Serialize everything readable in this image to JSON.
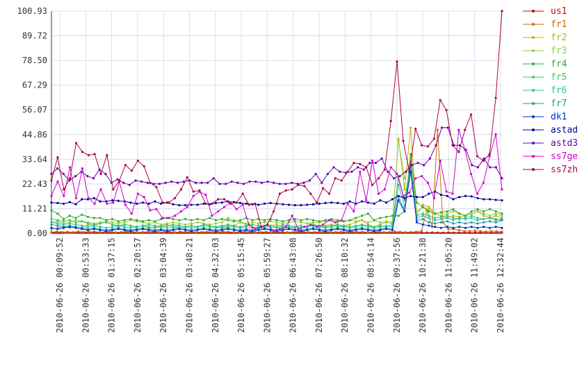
{
  "chart_data": {
    "type": "line",
    "title": "",
    "xlabel": "",
    "ylabel": "",
    "ylim": [
      0,
      100.93
    ],
    "yticks": [
      "0.00",
      "11.21",
      "22.43",
      "33.64",
      "44.86",
      "56.07",
      "67.29",
      "78.50",
      "89.72",
      "100.93"
    ],
    "xticks": [
      "2010-06-26 00:09:52",
      "2010-06-26 00:53:33",
      "2010-06-26 01:37:15",
      "2010-06-26 02:20:57",
      "2010-06-26 03:04:39",
      "2010-06-26 03:48:21",
      "2010-06-26 04:32:03",
      "2010-06-26 05:15:45",
      "2010-06-26 05:59:27",
      "2010-06-26 06:43:08",
      "2010-06-26 07:26:50",
      "2010-06-26 08:10:32",
      "2010-06-26 08:54:14",
      "2010-06-26 09:37:56",
      "2010-06-26 10:21:38",
      "2010-06-26 11:05:20",
      "2010-06-26 11:49:02",
      "2010-06-26 12:32:44"
    ],
    "grid": true,
    "legend": "right",
    "series": [
      {
        "name": "us1",
        "color": "#cc0000",
        "values": [
          0.3,
          0.4,
          0.3,
          0.5,
          0.3,
          0.4,
          0.3,
          0.3,
          0.4,
          0.3,
          0.3,
          0.4,
          0.3,
          0.3,
          0.4,
          0.3,
          0.3,
          0.4,
          0.3,
          0.3,
          0.4,
          0.3,
          0.3,
          0.4,
          0.3,
          0.3,
          0.4,
          0.3,
          0.3,
          0.4,
          0.3,
          0.3,
          0.4,
          0.3,
          0.3,
          0.4,
          0.3,
          0.3,
          0.4,
          0.3,
          0.3,
          0.4,
          0.3,
          0.3,
          0.4,
          0.3,
          0.3,
          0.4,
          0.3,
          0.3,
          0.4,
          0.3,
          0.3,
          0.4,
          0.3,
          0.3,
          0.4,
          0.3,
          0.3,
          0.4,
          0.3,
          0.3,
          0.4,
          0.3,
          0.3,
          0.4,
          0.3,
          0.3,
          0.4,
          0.3,
          0.3,
          0.4,
          0.3,
          0.3,
          0.4,
          0.3,
          0.3,
          0.4,
          0.3,
          0.3,
          0.4,
          0.3,
          0.3,
          0.4,
          0.3
        ]
      },
      {
        "name": "fr1",
        "color": "#cc6600",
        "values": [
          0.5,
          0.8,
          0.6,
          0.7,
          0.5,
          0.9,
          0.6,
          0.7,
          0.8,
          0.5,
          0.6,
          0.7,
          0.5,
          0.6,
          0.8,
          0.7,
          0.5,
          0.6,
          0.7,
          0.8,
          0.5,
          0.6,
          0.7,
          0.5,
          0.8,
          0.6,
          0.7,
          0.5,
          0.6,
          0.7,
          0.5,
          0.6,
          0.8,
          0.7,
          0.5,
          0.6,
          0.7,
          0.8,
          0.5,
          0.6,
          0.7,
          0.5,
          0.6,
          0.7,
          0.5,
          0.6,
          0.8,
          0.7,
          0.5,
          0.6,
          0.7,
          0.8,
          0.5,
          0.6,
          0.7,
          0.5,
          0.8,
          0.6,
          0.7,
          0.5,
          0.6,
          0.7,
          0.5,
          0.6,
          0.8,
          0.7,
          0.5,
          0.6,
          0.7,
          1.0,
          10.5,
          3.0,
          47.0,
          5.0,
          2.0,
          2.0,
          1.5,
          1.0,
          1.0,
          1.2,
          1.0,
          0.8,
          1.0,
          0.9,
          0.8
        ]
      },
      {
        "name": "fr2",
        "color": "#ccaa00",
        "values": [
          2.0,
          2.5,
          3.0,
          2.5,
          3.0,
          2.5,
          4.0,
          3.5,
          4.5,
          5.0,
          4.0,
          3.0,
          4.0,
          3.5,
          3.0,
          3.5,
          2.5,
          3.0,
          3.5,
          4.0,
          3.0,
          2.5,
          3.0,
          3.5,
          3.0,
          4.0,
          3.5,
          3.0,
          2.5,
          3.0,
          3.5,
          5.0,
          4.0,
          3.0,
          2.5,
          3.0,
          3.5,
          4.0,
          3.0,
          2.5,
          3.0,
          3.5,
          3.0,
          4.0,
          3.0,
          3.5,
          4.0,
          3.0,
          3.5,
          4.0,
          5.0,
          6.0,
          4.0,
          3.0,
          4.0,
          5.0,
          4.5,
          43.0,
          20.0,
          48.0,
          8.0,
          13.0,
          12.0,
          9.0,
          8.0,
          7.0,
          8.0,
          7.5,
          8.0,
          9.0,
          10.0,
          8.0,
          7.0,
          8.0,
          7.0
        ]
      },
      {
        "name": "fr3",
        "color": "#99cc33",
        "values": [
          5.0,
          5.5,
          4.5,
          5.0,
          6.0,
          5.5,
          5.0,
          4.5,
          5.0,
          5.5,
          5.0,
          4.5,
          5.0,
          6.0,
          5.5,
          5.0,
          4.5,
          5.0,
          4.0,
          4.5,
          5.0,
          4.5,
          4.0,
          4.5,
          5.0,
          4.5,
          4.0,
          4.5,
          5.0,
          7.0,
          6.0,
          5.0,
          4.5,
          5.0,
          4.5,
          5.0,
          5.5,
          5.0,
          4.5,
          5.0,
          5.5,
          5.0,
          4.5,
          5.0,
          5.0,
          5.5,
          6.0,
          5.0,
          5.5,
          6.0,
          5.5,
          6.0,
          5.0,
          6.0,
          5.0,
          5.5,
          5.0,
          42.0,
          25.0,
          33.0,
          10.0,
          12.0,
          11.0,
          9.0,
          8.0,
          9.0,
          10.0,
          9.0,
          8.0,
          9.0,
          10.0,
          9.0,
          8.0,
          9.0,
          8.0
        ]
      },
      {
        "name": "fr4",
        "color": "#33aa33",
        "values": [
          10.5,
          9.0,
          6.5,
          8.0,
          7.0,
          8.5,
          7.5,
          7.0,
          7.0,
          6.0,
          6.5,
          5.5,
          6.0,
          6.5,
          6.0,
          5.5,
          6.0,
          5.5,
          6.5,
          7.0,
          6.5,
          6.0,
          6.5,
          6.0,
          6.5,
          6.0,
          7.0,
          6.0,
          6.5,
          6.0,
          5.5,
          6.0,
          7.0,
          6.0,
          6.5,
          6.0,
          6.5,
          6.0,
          5.5,
          6.0,
          6.5,
          6.0,
          6.5,
          6.0,
          5.5,
          6.0,
          6.5,
          6.0,
          5.5,
          6.0,
          7.0,
          8.0,
          9.0,
          6.0,
          7.0,
          7.5,
          8.0,
          8.0,
          10.0,
          36.0,
          14.0,
          12.0,
          10.0,
          9.0,
          9.5,
          10.0,
          11.0,
          9.0,
          8.0,
          10.0,
          11.0,
          10.0,
          11.0,
          10.0,
          9.0
        ]
      },
      {
        "name": "fr5",
        "color": "#33cc66",
        "values": [
          6.5,
          6.0,
          5.5,
          6.0,
          5.0,
          5.5,
          4.5,
          4.0,
          4.5,
          5.0,
          4.0,
          3.5,
          4.0,
          3.5,
          3.0,
          3.5,
          4.0,
          3.5,
          3.0,
          3.5,
          4.0,
          3.5,
          3.0,
          3.5,
          3.0,
          4.0,
          3.5,
          3.0,
          3.5,
          4.0,
          3.5,
          3.0,
          3.5,
          4.0,
          3.5,
          3.0,
          3.5,
          3.0,
          4.0,
          3.5,
          3.0,
          3.5,
          3.0,
          4.0,
          3.5,
          3.0,
          3.5,
          4.0,
          3.5,
          3.0,
          3.5,
          4.0,
          3.5,
          3.0,
          3.5,
          3.0,
          4.0,
          26.0,
          15.0,
          32.0,
          8.0,
          9.0,
          8.0,
          7.0,
          7.5,
          8.0,
          7.0,
          6.5,
          7.0,
          8.0,
          7.0,
          6.5,
          7.0,
          6.5,
          6.0
        ]
      },
      {
        "name": "fr6",
        "color": "#33bbaa",
        "values": [
          5.0,
          4.5,
          4.0,
          4.5,
          4.0,
          3.5,
          3.0,
          3.5,
          3.0,
          2.5,
          3.0,
          3.5,
          3.0,
          2.5,
          3.0,
          3.5,
          3.0,
          2.5,
          3.0,
          2.5,
          3.0,
          3.5,
          3.0,
          2.5,
          3.0,
          3.5,
          3.0,
          2.5,
          3.0,
          3.5,
          3.0,
          2.5,
          3.0,
          2.5,
          3.0,
          3.5,
          3.0,
          2.5,
          3.0,
          3.5,
          3.0,
          2.5,
          3.0,
          3.5,
          3.0,
          2.5,
          3.0,
          3.5,
          3.0,
          2.5,
          3.0,
          3.5,
          3.0,
          2.5,
          3.0,
          3.5,
          3.0,
          22.0,
          12.0,
          30.0,
          7.0,
          8.0,
          7.0,
          6.0,
          6.5,
          7.0,
          6.0,
          7.0,
          6.5,
          7.0,
          6.0,
          6.5,
          7.0,
          6.0,
          6.5
        ]
      },
      {
        "name": "fr7",
        "color": "#229999",
        "values": [
          4.0,
          3.5,
          3.0,
          3.5,
          3.0,
          2.5,
          2.0,
          2.5,
          2.0,
          1.5,
          2.0,
          2.5,
          2.0,
          1.5,
          2.0,
          2.5,
          2.0,
          1.5,
          2.0,
          1.5,
          2.0,
          2.5,
          2.0,
          1.5,
          2.0,
          2.5,
          2.0,
          1.5,
          2.0,
          2.5,
          2.0,
          1.5,
          2.0,
          1.5,
          2.0,
          2.5,
          2.0,
          1.5,
          2.0,
          2.5,
          2.0,
          1.5,
          2.0,
          2.5,
          2.0,
          1.5,
          2.0,
          2.5,
          2.0,
          1.5,
          2.0,
          2.5,
          2.0,
          1.5,
          2.0,
          2.5,
          2.0,
          17.0,
          10.0,
          31.0,
          6.0,
          6.5,
          5.0,
          4.5,
          5.0,
          5.5,
          4.5,
          5.0,
          4.5,
          5.0,
          4.5,
          5.0,
          5.5,
          5.0,
          6.0
        ]
      },
      {
        "name": "dk1",
        "color": "#0033cc",
        "values": [
          2.5,
          2.0,
          2.5,
          3.0,
          2.5,
          2.0,
          1.5,
          2.0,
          1.5,
          1.0,
          1.5,
          2.0,
          1.5,
          1.0,
          1.5,
          2.0,
          1.5,
          1.0,
          1.5,
          1.0,
          1.5,
          2.0,
          1.5,
          1.0,
          1.5,
          2.0,
          1.5,
          1.0,
          1.5,
          2.0,
          1.5,
          1.0,
          1.5,
          1.0,
          1.5,
          2.0,
          1.5,
          1.0,
          1.5,
          2.0,
          1.5,
          1.0,
          1.5,
          2.0,
          1.5,
          1.0,
          1.5,
          2.0,
          1.5,
          1.0,
          1.5,
          2.0,
          1.5,
          1.0,
          1.5,
          2.0,
          1.5,
          15.0,
          10.0,
          28.0,
          5.0,
          4.0,
          3.5,
          3.0,
          2.5,
          3.0,
          2.5,
          3.0,
          2.5,
          3.0,
          2.5,
          3.0,
          2.5,
          3.0,
          2.5
        ]
      },
      {
        "name": "astad",
        "color": "#000099",
        "values": [
          14.0,
          13.8,
          13.5,
          14.2,
          13.2,
          15.5,
          15.5,
          16.0,
          14.5,
          14.5,
          15.0,
          14.8,
          14.5,
          14.0,
          13.5,
          14.0,
          13.5,
          14.5,
          13.5,
          14.0,
          13.2,
          12.8,
          12.8,
          13.0,
          13.0,
          13.5,
          13.2,
          13.8,
          14.0,
          14.5,
          14.2,
          13.8,
          13.5,
          13.2,
          13.0,
          13.5,
          13.8,
          13.5,
          13.2,
          13.0,
          12.8,
          12.8,
          13.0,
          13.2,
          13.5,
          13.8,
          14.0,
          13.8,
          13.5,
          14.5,
          13.5,
          14.5,
          14.0,
          13.5,
          15.0,
          14.0,
          15.5,
          17.0,
          16.0,
          17.0,
          16.5,
          16.5,
          18.0,
          19.0,
          17.5,
          17.0,
          15.5,
          16.5,
          17.0,
          16.8,
          16.0,
          15.5,
          15.5,
          15.2,
          15.0
        ]
      },
      {
        "name": "astd3",
        "color": "#6600aa",
        "values": [
          27.0,
          29.5,
          27.0,
          24.0,
          26.0,
          28.0,
          26.0,
          25.0,
          29.0,
          27.0,
          23.0,
          24.5,
          23.0,
          22.0,
          24.0,
          23.5,
          23.0,
          22.5,
          22.5,
          23.0,
          23.5,
          23.0,
          23.5,
          24.0,
          23.0,
          23.0,
          23.0,
          25.0,
          22.5,
          22.5,
          23.5,
          23.0,
          22.5,
          23.5,
          23.5,
          23.0,
          23.5,
          23.0,
          22.5,
          22.5,
          23.0,
          22.5,
          23.0,
          24.0,
          27.0,
          23.0,
          27.0,
          30.0,
          28.0,
          27.5,
          28.0,
          30.0,
          29.0,
          32.0,
          32.0,
          34.0,
          28.0,
          25.0,
          26.0,
          28.0,
          31.0,
          32.0,
          31.0,
          34.0,
          40.0,
          48.0,
          48.0,
          40.0,
          40.0,
          38.0,
          31.0,
          30.0,
          34.0,
          30.0,
          30.0,
          25.0
        ]
      },
      {
        "name": "ss7ge",
        "color": "#cc00cc",
        "values": [
          17.0,
          23.5,
          17.0,
          30.0,
          16.0,
          29.5,
          16.0,
          13.5,
          20.0,
          13.5,
          14.0,
          23.5,
          13.0,
          9.0,
          18.0,
          16.5,
          10.5,
          11.0,
          7.0,
          7.0,
          8.0,
          10.0,
          12.0,
          17.0,
          19.0,
          17.5,
          8.0,
          10.0,
          12.0,
          14.0,
          11.0,
          13.0,
          4.0,
          2.0,
          3.0,
          4.0,
          1.0,
          2.0,
          3.0,
          8.0,
          2.0,
          3.0,
          4.0,
          3.0,
          4.0,
          6.0,
          5.0,
          6.0,
          13.5,
          10.0,
          28.0,
          15.0,
          33.0,
          18.0,
          20.0,
          30.0,
          27.0,
          17.0,
          18.5,
          25.0,
          26.0,
          23.0,
          16.0,
          33.0,
          19.0,
          18.0,
          47.0,
          38.0,
          27.0,
          18.0,
          23.0,
          35.0,
          45.0,
          20.0
        ]
      },
      {
        "name": "ss7zh",
        "color": "#aa0044",
        "values": [
          24.0,
          34.5,
          20.0,
          25.0,
          41.0,
          37.0,
          35.5,
          36.0,
          27.0,
          35.5,
          20.0,
          24.0,
          31.0,
          28.5,
          33.0,
          30.5,
          23.0,
          21.0,
          14.0,
          14.0,
          16.0,
          20.0,
          25.5,
          19.0,
          19.5,
          13.5,
          13.5,
          15.5,
          15.5,
          13.5,
          14.0,
          18.0,
          13.0,
          13.5,
          3.0,
          4.0,
          10.0,
          18.0,
          19.5,
          20.0,
          22.0,
          21.5,
          18.0,
          14.0,
          20.5,
          18.0,
          25.0,
          24.0,
          28.0,
          32.0,
          31.5,
          30.0,
          22.0,
          25.0,
          29.0,
          51.0,
          78.0,
          42.0,
          28.0,
          47.5,
          40.0,
          39.5,
          43.0,
          60.5,
          56.0,
          40.0,
          37.0,
          47.0,
          54.0,
          35.0,
          33.0,
          36.0,
          61.5,
          101.0
        ]
      }
    ]
  }
}
